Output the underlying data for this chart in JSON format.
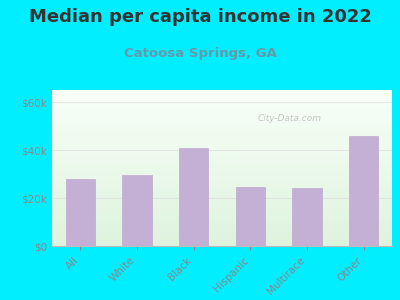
{
  "title": "Median per capita income in 2022",
  "subtitle": "Catoosa Springs, GA",
  "categories": [
    "All",
    "White",
    "Black",
    "Hispanic",
    "Multirace",
    "Other"
  ],
  "values": [
    28000,
    29500,
    41000,
    24500,
    24000,
    46000
  ],
  "bar_color": "#c4b0d5",
  "bar_edge_color": "#b8a0cc",
  "background_outer": "#00eeff",
  "title_color": "#333333",
  "subtitle_color": "#6699aa",
  "tick_label_color": "#888888",
  "ytick_values": [
    0,
    20000,
    40000,
    60000
  ],
  "ylim": [
    0,
    65000
  ],
  "watermark": "City-Data.com",
  "title_fontsize": 13,
  "subtitle_fontsize": 9.5
}
